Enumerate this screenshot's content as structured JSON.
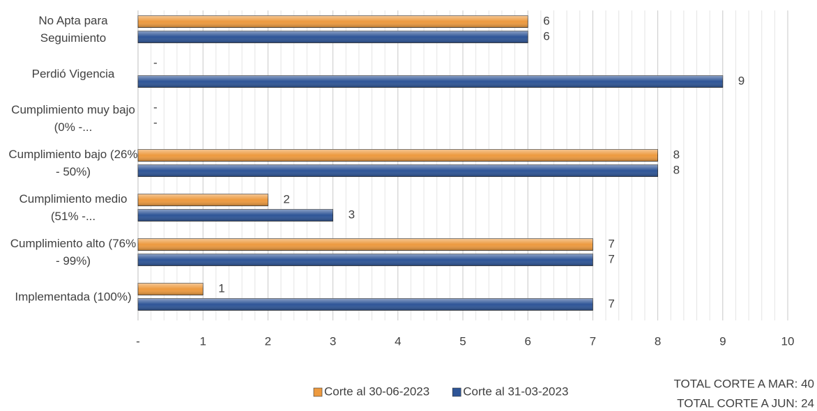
{
  "chart_data": {
    "type": "bar",
    "orientation": "horizontal",
    "categories": [
      "No Apta para Seguimiento",
      "Perdió Vigencia",
      "Cumplimiento muy bajo (0% -...",
      "Cumplimiento bajo (26% - 50%)",
      "Cumplimiento medio (51% -...",
      "Cumplimiento alto (76% - 99%)",
      "Implementada (100%)"
    ],
    "series": [
      {
        "name": "Corte al 30-06-2023",
        "color": "#ed9a3f",
        "values": [
          6,
          0,
          0,
          8,
          2,
          7,
          1
        ],
        "value_labels": [
          "6",
          "-",
          "-",
          "8",
          "2",
          "7",
          "1"
        ]
      },
      {
        "name": "Corte al 31-03-2023",
        "color": "#2e5597",
        "values": [
          6,
          9,
          0,
          8,
          3,
          7,
          7
        ],
        "value_labels": [
          "6",
          "9",
          "-",
          "8",
          "3",
          "7",
          "7"
        ]
      }
    ],
    "xlim": [
      0,
      10
    ],
    "xticks": [
      {
        "value": 0,
        "label": "-"
      },
      1,
      2,
      3,
      4,
      5,
      6,
      7,
      8,
      9,
      10
    ],
    "grid": true,
    "minor_grid_divisions": 5,
    "legend": "bottom",
    "annotations": [
      "TOTAL CORTE A MAR: 40",
      "TOTAL CORTE A JUN: 24"
    ]
  }
}
